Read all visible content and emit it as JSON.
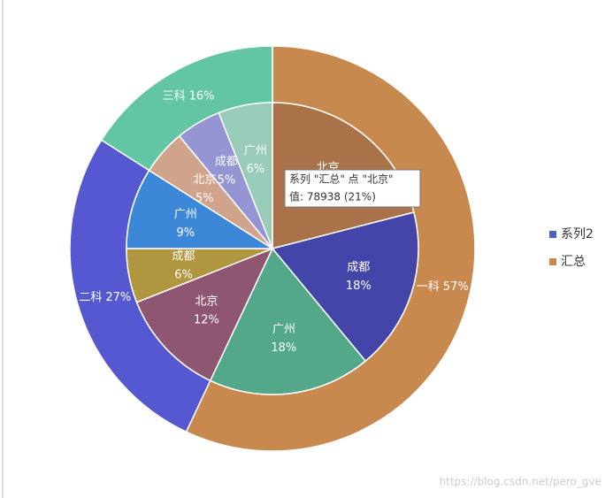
{
  "chart_data": {
    "type": "pie",
    "series": [
      {
        "name": "系列2",
        "color": "#4a5fc8",
        "categories": [
          "一科",
          "二科",
          "三科"
        ],
        "values": [
          57,
          27,
          16
        ],
        "value_labels": [
          "57%",
          "27%",
          "16%"
        ],
        "colors": [
          "#c8894f",
          "#5558d0",
          "#62c6a4"
        ]
      },
      {
        "name": "汇总",
        "color": "#c8894f",
        "categories": [
          "北京",
          "成都",
          "广州",
          "北京",
          "成都",
          "广州",
          "北京",
          "成都",
          "广州"
        ],
        "values": [
          21,
          18,
          18,
          12,
          6,
          9,
          5,
          5,
          6
        ],
        "value_labels": [
          "21%",
          "18%",
          "18%",
          "12%",
          "6%",
          "9%",
          "5%",
          "5%",
          "6%"
        ],
        "colors": [
          "#a97249",
          "#4346a8",
          "#52a888",
          "#8e5670",
          "#b0963e",
          "#3d87d9",
          "#d0a38c",
          "#9595d4",
          "#98cbb9"
        ]
      }
    ],
    "tooltip": {
      "title": "系列 \"汇总\" 点 \"北京\"",
      "text": "值: 78938 (21%)"
    },
    "watermark": "https://blog.csdn.net/pero_gve"
  }
}
